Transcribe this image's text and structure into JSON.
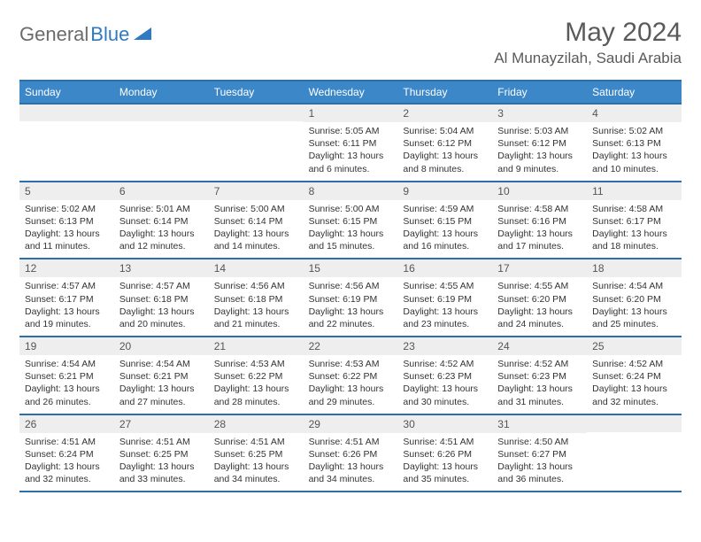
{
  "logo": {
    "general": "General",
    "blue": "Blue"
  },
  "title": "May 2024",
  "location": "Al Munayzilah, Saudi Arabia",
  "weekdays": [
    "Sunday",
    "Monday",
    "Tuesday",
    "Wednesday",
    "Thursday",
    "Friday",
    "Saturday"
  ],
  "colors": {
    "header_bg": "#3b87c8",
    "header_border": "#2d6fa8",
    "daynum_bg": "#eeeeee",
    "text": "#333333",
    "logo_gray": "#6b6b6b",
    "logo_blue": "#2f7ac0"
  },
  "weeks": [
    [
      {
        "n": "",
        "sr": "",
        "ss": "",
        "dl": ""
      },
      {
        "n": "",
        "sr": "",
        "ss": "",
        "dl": ""
      },
      {
        "n": "",
        "sr": "",
        "ss": "",
        "dl": ""
      },
      {
        "n": "1",
        "sr": "Sunrise: 5:05 AM",
        "ss": "Sunset: 6:11 PM",
        "dl": "Daylight: 13 hours and 6 minutes."
      },
      {
        "n": "2",
        "sr": "Sunrise: 5:04 AM",
        "ss": "Sunset: 6:12 PM",
        "dl": "Daylight: 13 hours and 8 minutes."
      },
      {
        "n": "3",
        "sr": "Sunrise: 5:03 AM",
        "ss": "Sunset: 6:12 PM",
        "dl": "Daylight: 13 hours and 9 minutes."
      },
      {
        "n": "4",
        "sr": "Sunrise: 5:02 AM",
        "ss": "Sunset: 6:13 PM",
        "dl": "Daylight: 13 hours and 10 minutes."
      }
    ],
    [
      {
        "n": "5",
        "sr": "Sunrise: 5:02 AM",
        "ss": "Sunset: 6:13 PM",
        "dl": "Daylight: 13 hours and 11 minutes."
      },
      {
        "n": "6",
        "sr": "Sunrise: 5:01 AM",
        "ss": "Sunset: 6:14 PM",
        "dl": "Daylight: 13 hours and 12 minutes."
      },
      {
        "n": "7",
        "sr": "Sunrise: 5:00 AM",
        "ss": "Sunset: 6:14 PM",
        "dl": "Daylight: 13 hours and 14 minutes."
      },
      {
        "n": "8",
        "sr": "Sunrise: 5:00 AM",
        "ss": "Sunset: 6:15 PM",
        "dl": "Daylight: 13 hours and 15 minutes."
      },
      {
        "n": "9",
        "sr": "Sunrise: 4:59 AM",
        "ss": "Sunset: 6:15 PM",
        "dl": "Daylight: 13 hours and 16 minutes."
      },
      {
        "n": "10",
        "sr": "Sunrise: 4:58 AM",
        "ss": "Sunset: 6:16 PM",
        "dl": "Daylight: 13 hours and 17 minutes."
      },
      {
        "n": "11",
        "sr": "Sunrise: 4:58 AM",
        "ss": "Sunset: 6:17 PM",
        "dl": "Daylight: 13 hours and 18 minutes."
      }
    ],
    [
      {
        "n": "12",
        "sr": "Sunrise: 4:57 AM",
        "ss": "Sunset: 6:17 PM",
        "dl": "Daylight: 13 hours and 19 minutes."
      },
      {
        "n": "13",
        "sr": "Sunrise: 4:57 AM",
        "ss": "Sunset: 6:18 PM",
        "dl": "Daylight: 13 hours and 20 minutes."
      },
      {
        "n": "14",
        "sr": "Sunrise: 4:56 AM",
        "ss": "Sunset: 6:18 PM",
        "dl": "Daylight: 13 hours and 21 minutes."
      },
      {
        "n": "15",
        "sr": "Sunrise: 4:56 AM",
        "ss": "Sunset: 6:19 PM",
        "dl": "Daylight: 13 hours and 22 minutes."
      },
      {
        "n": "16",
        "sr": "Sunrise: 4:55 AM",
        "ss": "Sunset: 6:19 PM",
        "dl": "Daylight: 13 hours and 23 minutes."
      },
      {
        "n": "17",
        "sr": "Sunrise: 4:55 AM",
        "ss": "Sunset: 6:20 PM",
        "dl": "Daylight: 13 hours and 24 minutes."
      },
      {
        "n": "18",
        "sr": "Sunrise: 4:54 AM",
        "ss": "Sunset: 6:20 PM",
        "dl": "Daylight: 13 hours and 25 minutes."
      }
    ],
    [
      {
        "n": "19",
        "sr": "Sunrise: 4:54 AM",
        "ss": "Sunset: 6:21 PM",
        "dl": "Daylight: 13 hours and 26 minutes."
      },
      {
        "n": "20",
        "sr": "Sunrise: 4:54 AM",
        "ss": "Sunset: 6:21 PM",
        "dl": "Daylight: 13 hours and 27 minutes."
      },
      {
        "n": "21",
        "sr": "Sunrise: 4:53 AM",
        "ss": "Sunset: 6:22 PM",
        "dl": "Daylight: 13 hours and 28 minutes."
      },
      {
        "n": "22",
        "sr": "Sunrise: 4:53 AM",
        "ss": "Sunset: 6:22 PM",
        "dl": "Daylight: 13 hours and 29 minutes."
      },
      {
        "n": "23",
        "sr": "Sunrise: 4:52 AM",
        "ss": "Sunset: 6:23 PM",
        "dl": "Daylight: 13 hours and 30 minutes."
      },
      {
        "n": "24",
        "sr": "Sunrise: 4:52 AM",
        "ss": "Sunset: 6:23 PM",
        "dl": "Daylight: 13 hours and 31 minutes."
      },
      {
        "n": "25",
        "sr": "Sunrise: 4:52 AM",
        "ss": "Sunset: 6:24 PM",
        "dl": "Daylight: 13 hours and 32 minutes."
      }
    ],
    [
      {
        "n": "26",
        "sr": "Sunrise: 4:51 AM",
        "ss": "Sunset: 6:24 PM",
        "dl": "Daylight: 13 hours and 32 minutes."
      },
      {
        "n": "27",
        "sr": "Sunrise: 4:51 AM",
        "ss": "Sunset: 6:25 PM",
        "dl": "Daylight: 13 hours and 33 minutes."
      },
      {
        "n": "28",
        "sr": "Sunrise: 4:51 AM",
        "ss": "Sunset: 6:25 PM",
        "dl": "Daylight: 13 hours and 34 minutes."
      },
      {
        "n": "29",
        "sr": "Sunrise: 4:51 AM",
        "ss": "Sunset: 6:26 PM",
        "dl": "Daylight: 13 hours and 34 minutes."
      },
      {
        "n": "30",
        "sr": "Sunrise: 4:51 AM",
        "ss": "Sunset: 6:26 PM",
        "dl": "Daylight: 13 hours and 35 minutes."
      },
      {
        "n": "31",
        "sr": "Sunrise: 4:50 AM",
        "ss": "Sunset: 6:27 PM",
        "dl": "Daylight: 13 hours and 36 minutes."
      },
      {
        "n": "",
        "sr": "",
        "ss": "",
        "dl": ""
      }
    ]
  ]
}
